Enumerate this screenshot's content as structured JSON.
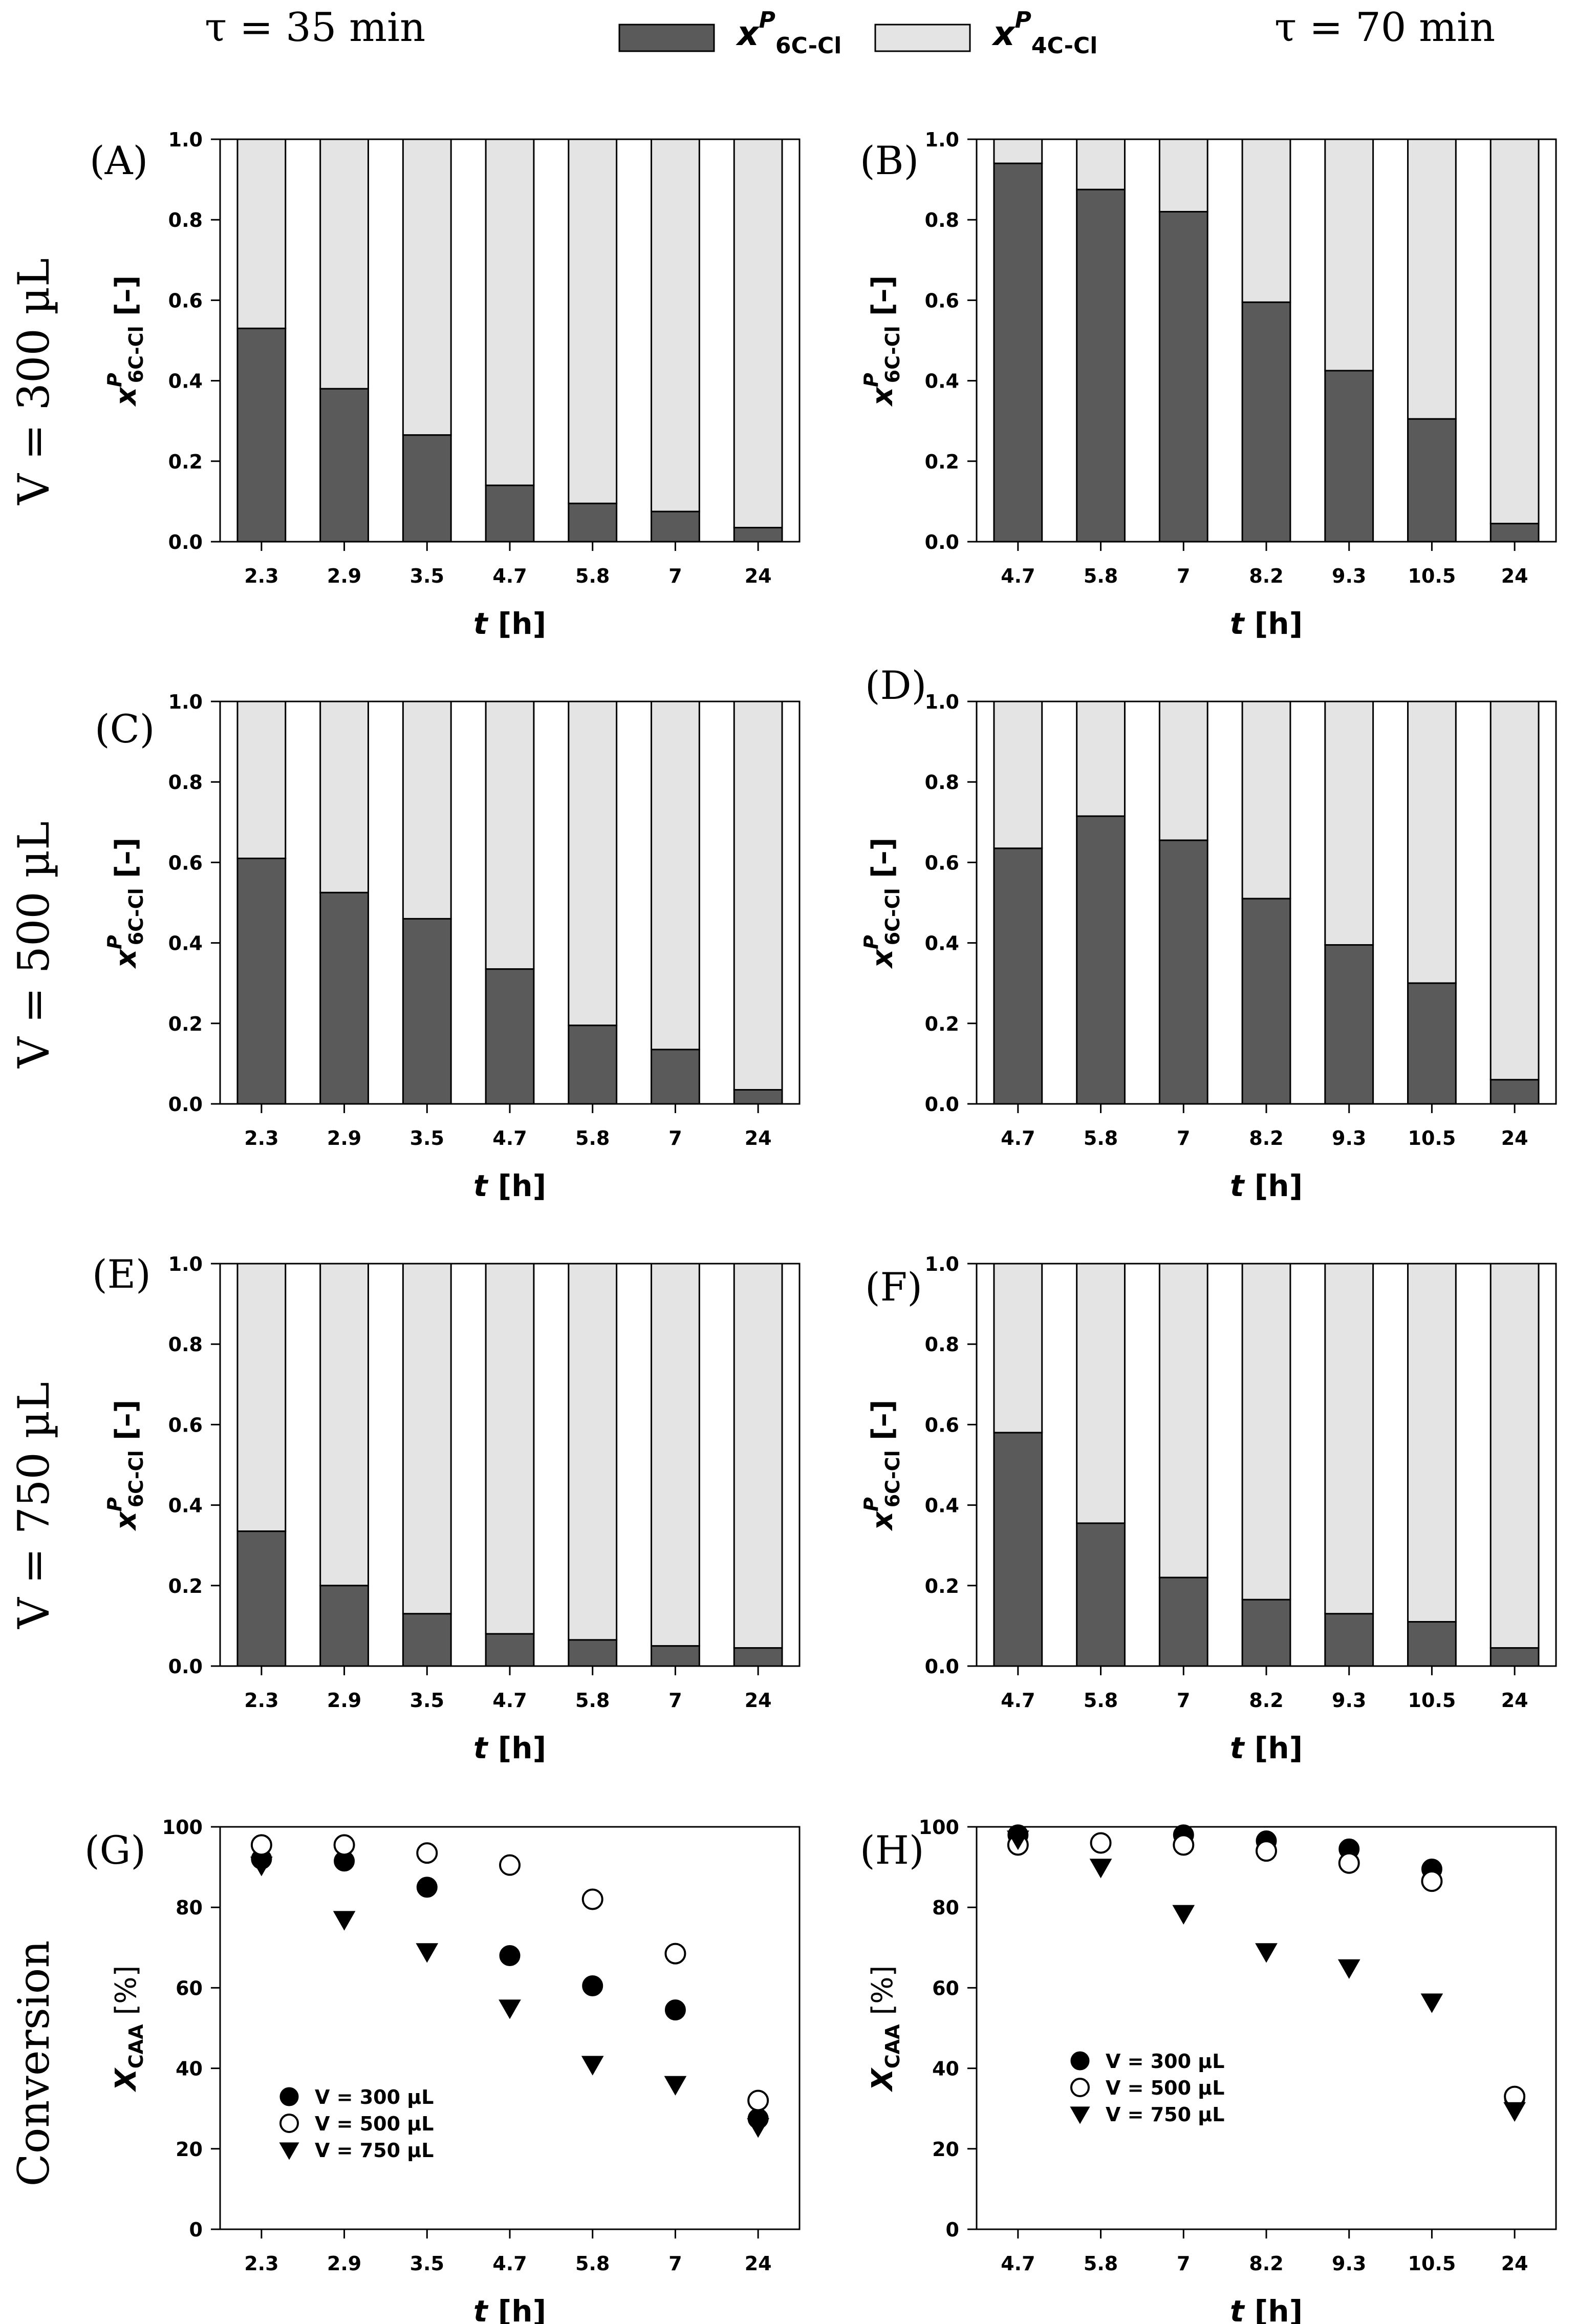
{
  "header": {
    "tau_left": "τ = 35 min",
    "tau_right": "τ = 70 min",
    "legend_6c": "x",
    "legend_6c_sup": "P",
    "legend_6c_sub": "6C-Cl",
    "legend_4c": "x",
    "legend_4c_sup": "P",
    "legend_4c_sub": "4C-Cl"
  },
  "rows": [
    {
      "label": "V = 300 µL"
    },
    {
      "label": "V = 500 µL"
    },
    {
      "label": "V = 750 µL"
    },
    {
      "label": "Conversion"
    }
  ],
  "colors": {
    "dark": "#5a5a5a",
    "light": "#e4e4e4",
    "axis": "#000000"
  },
  "chart_data": [
    {
      "panel": "(A)",
      "type": "bar",
      "stacked": true,
      "categories": [
        "2.3",
        "2.9",
        "3.5",
        "4.7",
        "5.8",
        "7",
        "24"
      ],
      "series": [
        {
          "values": [
            0.53,
            0.38,
            0.265,
            0.14,
            0.095,
            0.075,
            0.035
          ]
        }
      ],
      "ylim": [
        0,
        1.0
      ],
      "yticks": [
        "0.0",
        "0.2",
        "0.4",
        "0.6",
        "0.8",
        "1.0"
      ],
      "ylabel": "x",
      "ylabel_sup": "P",
      "ylabel_sub": "6C-Cl",
      "ylabel_unit": " [–]",
      "xlabel": "t",
      "xlabel_unit": " [h]"
    },
    {
      "panel": "(B)",
      "type": "bar",
      "stacked": true,
      "categories": [
        "4.7",
        "5.8",
        "7",
        "8.2",
        "9.3",
        "10.5",
        "24"
      ],
      "series": [
        {
          "values": [
            0.94,
            0.875,
            0.82,
            0.595,
            0.425,
            0.305,
            0.045
          ]
        }
      ],
      "ylim": [
        0,
        1.0
      ],
      "yticks": [
        "0.0",
        "0.2",
        "0.4",
        "0.6",
        "0.8",
        "1.0"
      ],
      "ylabel": "x",
      "ylabel_sup": "P",
      "ylabel_sub": "6C-Cl",
      "ylabel_unit": " [–]",
      "xlabel": "t",
      "xlabel_unit": " [h]"
    },
    {
      "panel": "(C)",
      "type": "bar",
      "stacked": true,
      "categories": [
        "2.3",
        "2.9",
        "3.5",
        "4.7",
        "5.8",
        "7",
        "24"
      ],
      "series": [
        {
          "values": [
            0.61,
            0.525,
            0.46,
            0.335,
            0.195,
            0.135,
            0.035
          ]
        }
      ],
      "ylim": [
        0,
        1.0
      ],
      "yticks": [
        "0.0",
        "0.2",
        "0.4",
        "0.6",
        "0.8",
        "1.0"
      ],
      "ylabel": "x",
      "ylabel_sup": "P",
      "ylabel_sub": "6C-Cl",
      "ylabel_unit": " [–]",
      "xlabel": "t",
      "xlabel_unit": " [h]"
    },
    {
      "panel": "(D)",
      "type": "bar",
      "stacked": true,
      "categories": [
        "4.7",
        "5.8",
        "7",
        "8.2",
        "9.3",
        "10.5",
        "24"
      ],
      "series": [
        {
          "values": [
            0.635,
            0.715,
            0.655,
            0.51,
            0.395,
            0.3,
            0.06
          ]
        }
      ],
      "ylim": [
        0,
        1.0
      ],
      "yticks": [
        "0.0",
        "0.2",
        "0.4",
        "0.6",
        "0.8",
        "1.0"
      ],
      "ylabel": "x",
      "ylabel_sup": "P",
      "ylabel_sub": "6C-Cl",
      "ylabel_unit": " [–]",
      "xlabel": "t",
      "xlabel_unit": " [h]"
    },
    {
      "panel": "(E)",
      "type": "bar",
      "stacked": true,
      "categories": [
        "2.3",
        "2.9",
        "3.5",
        "4.7",
        "5.8",
        "7",
        "24"
      ],
      "series": [
        {
          "values": [
            0.335,
            0.2,
            0.13,
            0.08,
            0.065,
            0.05,
            0.045
          ]
        }
      ],
      "ylim": [
        0,
        1.0
      ],
      "yticks": [
        "0.0",
        "0.2",
        "0.4",
        "0.6",
        "0.8",
        "1.0"
      ],
      "ylabel": "x",
      "ylabel_sup": "P",
      "ylabel_sub": "6C-Cl",
      "ylabel_unit": " [–]",
      "xlabel": "t",
      "xlabel_unit": " [h]"
    },
    {
      "panel": "(F)",
      "type": "bar",
      "stacked": true,
      "categories": [
        "4.7",
        "5.8",
        "7",
        "8.2",
        "9.3",
        "10.5",
        "24"
      ],
      "series": [
        {
          "values": [
            0.58,
            0.355,
            0.22,
            0.165,
            0.13,
            0.11,
            0.045
          ]
        }
      ],
      "ylim": [
        0,
        1.0
      ],
      "yticks": [
        "0.0",
        "0.2",
        "0.4",
        "0.6",
        "0.8",
        "1.0"
      ],
      "ylabel": "x",
      "ylabel_sup": "P",
      "ylabel_sub": "6C-Cl",
      "ylabel_unit": " [–]",
      "xlabel": "t",
      "xlabel_unit": " [h]"
    },
    {
      "panel": "(G)",
      "type": "scatter",
      "categories": [
        "2.3",
        "2.9",
        "3.5",
        "4.7",
        "5.8",
        "7",
        "24"
      ],
      "series": [
        {
          "name": "V = 300 µL",
          "marker": "filled-circle",
          "values": [
            92,
            91.5,
            85,
            68,
            60.5,
            54.5,
            27.5
          ]
        },
        {
          "name": "V = 500 µL",
          "marker": "open-circle",
          "values": [
            95.5,
            95.5,
            93.5,
            90.5,
            82,
            68.5,
            32
          ]
        },
        {
          "name": "V = 750 µL",
          "marker": "filled-triangle-down",
          "values": [
            90.5,
            77,
            69,
            55,
            41,
            36,
            25.5
          ]
        }
      ],
      "ylim": [
        0,
        100
      ],
      "yticks": [
        "0",
        "20",
        "40",
        "60",
        "80",
        "100"
      ],
      "ylabel": "X",
      "ylabel_sub": "CAA",
      "ylabel_unit": " [%]",
      "xlabel": "t",
      "xlabel_unit": " [h]",
      "legend": "bottom-left"
    },
    {
      "panel": "(H)",
      "type": "scatter",
      "categories": [
        "4.7",
        "5.8",
        "7",
        "8.2",
        "9.3",
        "10.5",
        "24"
      ],
      "series": [
        {
          "name": "V = 300 µL",
          "marker": "filled-circle",
          "values": [
            98,
            96,
            98,
            96.5,
            94.5,
            89.5,
            32.5
          ]
        },
        {
          "name": "V = 500 µL",
          "marker": "open-circle",
          "values": [
            95.5,
            96,
            95.5,
            94,
            91,
            86.5,
            33
          ]
        },
        {
          "name": "V = 750 µL",
          "marker": "filled-triangle-down",
          "values": [
            97,
            90,
            78.5,
            69,
            65,
            56.5,
            29.5
          ]
        }
      ],
      "ylim": [
        0,
        100
      ],
      "yticks": [
        "0",
        "20",
        "40",
        "60",
        "80",
        "100"
      ],
      "ylabel": "X",
      "ylabel_sub": "CAA",
      "ylabel_unit": " [%]",
      "xlabel": "t",
      "xlabel_unit": " [h]",
      "legend": "center-left"
    }
  ]
}
